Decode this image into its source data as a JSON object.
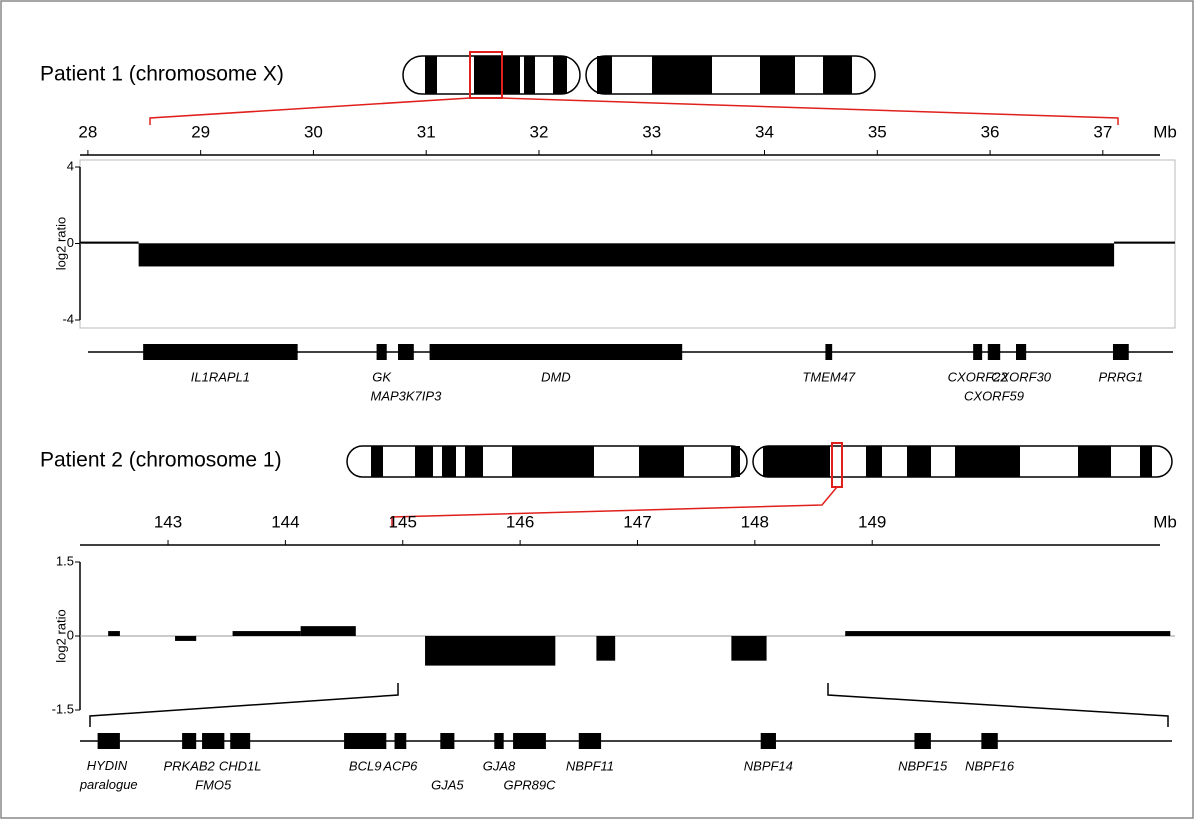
{
  "chart_data": [
    {
      "type": "cnv",
      "title": "Patient 1 (chromosome X)",
      "axis_unit": "Mb",
      "ylabel": "log2 ratio",
      "xlim": [
        27.93,
        37.64
      ],
      "xticks": [
        28,
        29,
        30,
        31,
        32,
        33,
        34,
        35,
        36,
        37
      ],
      "ylim": [
        -4,
        4
      ],
      "yticks": [
        -4,
        0,
        4
      ],
      "color": "#000000",
      "segments": [
        {
          "start": 27.93,
          "end": 28.45,
          "value": 0.1
        },
        {
          "start": 28.45,
          "end": 37.1,
          "value": -1.2
        },
        {
          "start": 37.1,
          "end": 37.64,
          "value": 0.1
        }
      ],
      "genes": [
        {
          "name": "IL1RAPL1",
          "start": 28.49,
          "end": 29.86
        },
        {
          "name": "GK",
          "start": 30.56,
          "end": 30.65
        },
        {
          "name": "MAP3K7IP3",
          "start": 30.75,
          "end": 30.89
        },
        {
          "name": "DMD",
          "start": 31.03,
          "end": 33.27
        },
        {
          "name": "TMEM47",
          "start": 34.54,
          "end": 34.6
        },
        {
          "name": "CXORF22",
          "start": 35.85,
          "end": 35.93
        },
        {
          "name": "CXORF59",
          "start": 35.98,
          "end": 36.09
        },
        {
          "name": "CXORF30",
          "start": 36.23,
          "end": 36.32
        },
        {
          "name": "PRRG1",
          "start": 37.09,
          "end": 37.23
        }
      ]
    },
    {
      "type": "cnv",
      "title": "Patient 2 (chromosome 1)",
      "axis_unit": "Mb",
      "ylabel": "log2 ratio",
      "xlim": [
        142.25,
        151.58
      ],
      "xticks": [
        143,
        144,
        145,
        146,
        147,
        148,
        149
      ],
      "ylim": [
        -1.5,
        1.5
      ],
      "yticks": [
        -1.5,
        0,
        1.5
      ],
      "color": "#000000",
      "segments": [
        {
          "start": 142.49,
          "end": 142.59,
          "value": 0.1
        },
        {
          "start": 143.06,
          "end": 143.24,
          "value": -0.1
        },
        {
          "start": 143.55,
          "end": 144.13,
          "value": 0.1
        },
        {
          "start": 144.13,
          "end": 144.6,
          "value": 0.2
        },
        {
          "start": 145.19,
          "end": 146.3,
          "value": -0.6
        },
        {
          "start": 146.65,
          "end": 146.81,
          "value": -0.5
        },
        {
          "start": 147.8,
          "end": 148.1,
          "value": -0.5
        },
        {
          "start": 148.77,
          "end": 151.54,
          "value": 0.1
        }
      ],
      "genes": [
        {
          "name": "HYDIN paralogue",
          "start": 142.4,
          "end": 142.59
        },
        {
          "name": "PRKAB2",
          "start": 143.12,
          "end": 143.24
        },
        {
          "name": "FMO5",
          "start": 143.29,
          "end": 143.48
        },
        {
          "name": "CHD1L",
          "start": 143.53,
          "end": 143.7
        },
        {
          "name": "BCL9",
          "start": 144.5,
          "end": 144.86
        },
        {
          "name": "ACP6",
          "start": 144.93,
          "end": 145.03
        },
        {
          "name": "GJA5",
          "start": 145.32,
          "end": 145.44
        },
        {
          "name": "GJA8",
          "start": 145.78,
          "end": 145.86
        },
        {
          "name": "GPR89C",
          "start": 145.94,
          "end": 146.22
        },
        {
          "name": "NBPF11",
          "start": 146.5,
          "end": 146.69
        },
        {
          "name": "NBPF14",
          "start": 148.05,
          "end": 148.18
        },
        {
          "name": "NBPF15",
          "start": 149.36,
          "end": 149.5
        },
        {
          "name": "NBPF16",
          "start": 149.93,
          "end": 150.07
        }
      ]
    }
  ]
}
